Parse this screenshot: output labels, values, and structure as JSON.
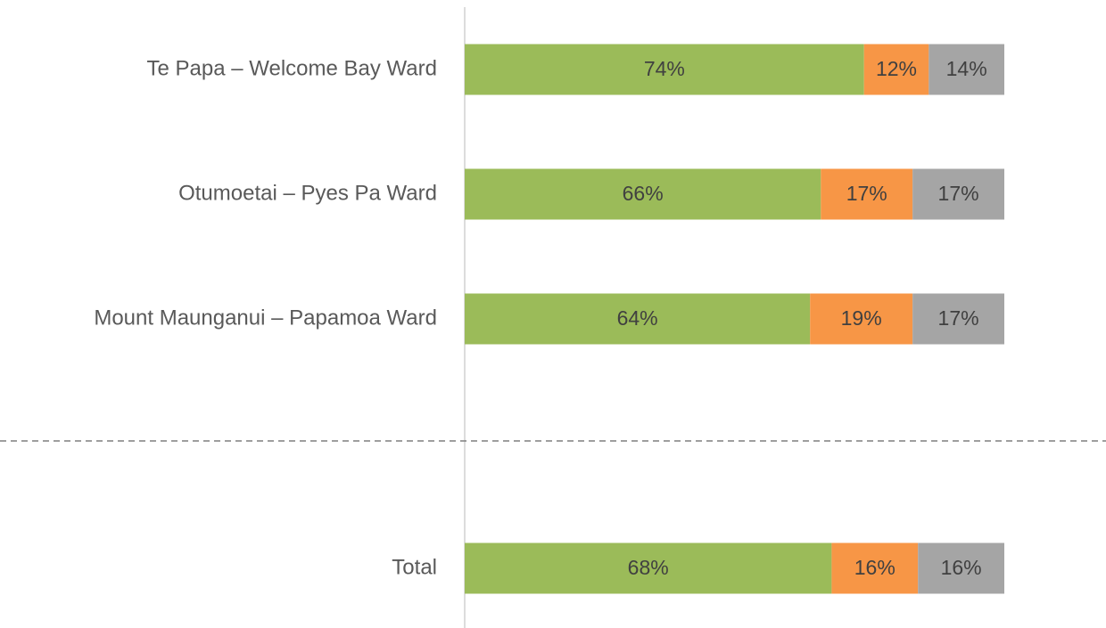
{
  "chart_data": {
    "type": "stacked_bar_horizontal",
    "categories": [
      "Te Papa – Welcome Bay Ward",
      "Otumoetai – Pyes Pa Ward",
      "Mount Maunganui – Papamoa Ward",
      null,
      "Total"
    ],
    "series": [
      {
        "color": "#9bbb59",
        "values": [
          74,
          66,
          64,
          null,
          68
        ],
        "value_labels": [
          "74%",
          "66%",
          "64%",
          null,
          "68%"
        ]
      },
      {
        "color": "#f79646",
        "values": [
          12,
          17,
          19,
          null,
          16
        ],
        "value_labels": [
          "12%",
          "17%",
          "19%",
          null,
          "16%"
        ]
      },
      {
        "color": "#a5a5a5",
        "values": [
          14,
          17,
          17,
          null,
          16
        ],
        "value_labels": [
          "14%",
          "17%",
          "17%",
          null,
          "16%"
        ]
      }
    ],
    "xlim": [
      0,
      100
    ]
  }
}
